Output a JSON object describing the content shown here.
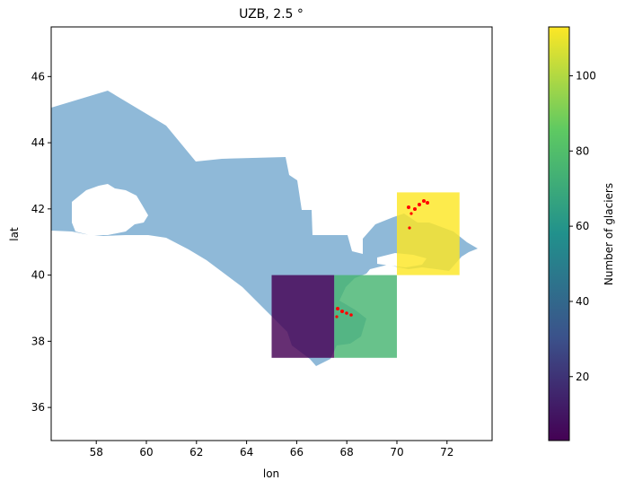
{
  "title": "UZB, 2.5 °",
  "xlabel": "lon",
  "ylabel": "lat",
  "colorbar_label": "Number of glaciers",
  "chart_data": {
    "type": "heatmap",
    "title": "UZB, 2.5 °",
    "xlabel": "lon",
    "ylabel": "lat",
    "xlim": [
      56.2,
      73.8
    ],
    "ylim": [
      35.0,
      47.5
    ],
    "xticks": [
      "58",
      "60",
      "62",
      "64",
      "66",
      "68",
      "70",
      "72"
    ],
    "yticks": [
      "36",
      "38",
      "40",
      "42",
      "44",
      "46"
    ],
    "grid": false,
    "cell_size_deg": 2.5,
    "cells": [
      {
        "lon": [
          65.0,
          67.5
        ],
        "lat": [
          37.5,
          40.0
        ],
        "count": 3
      },
      {
        "lon": [
          67.5,
          70.0
        ],
        "lat": [
          37.5,
          40.0
        ],
        "count": 75
      },
      {
        "lon": [
          70.0,
          72.5
        ],
        "lat": [
          40.0,
          42.5
        ],
        "count": 113
      }
    ],
    "colorbar": {
      "label": "Number of glaciers",
      "range": [
        3,
        113
      ],
      "ticks": [
        "20",
        "40",
        "60",
        "80",
        "100"
      ],
      "colormap": "viridis"
    },
    "country_fill_color": "#8fb9d8",
    "glacier_color": "#ff0000"
  }
}
